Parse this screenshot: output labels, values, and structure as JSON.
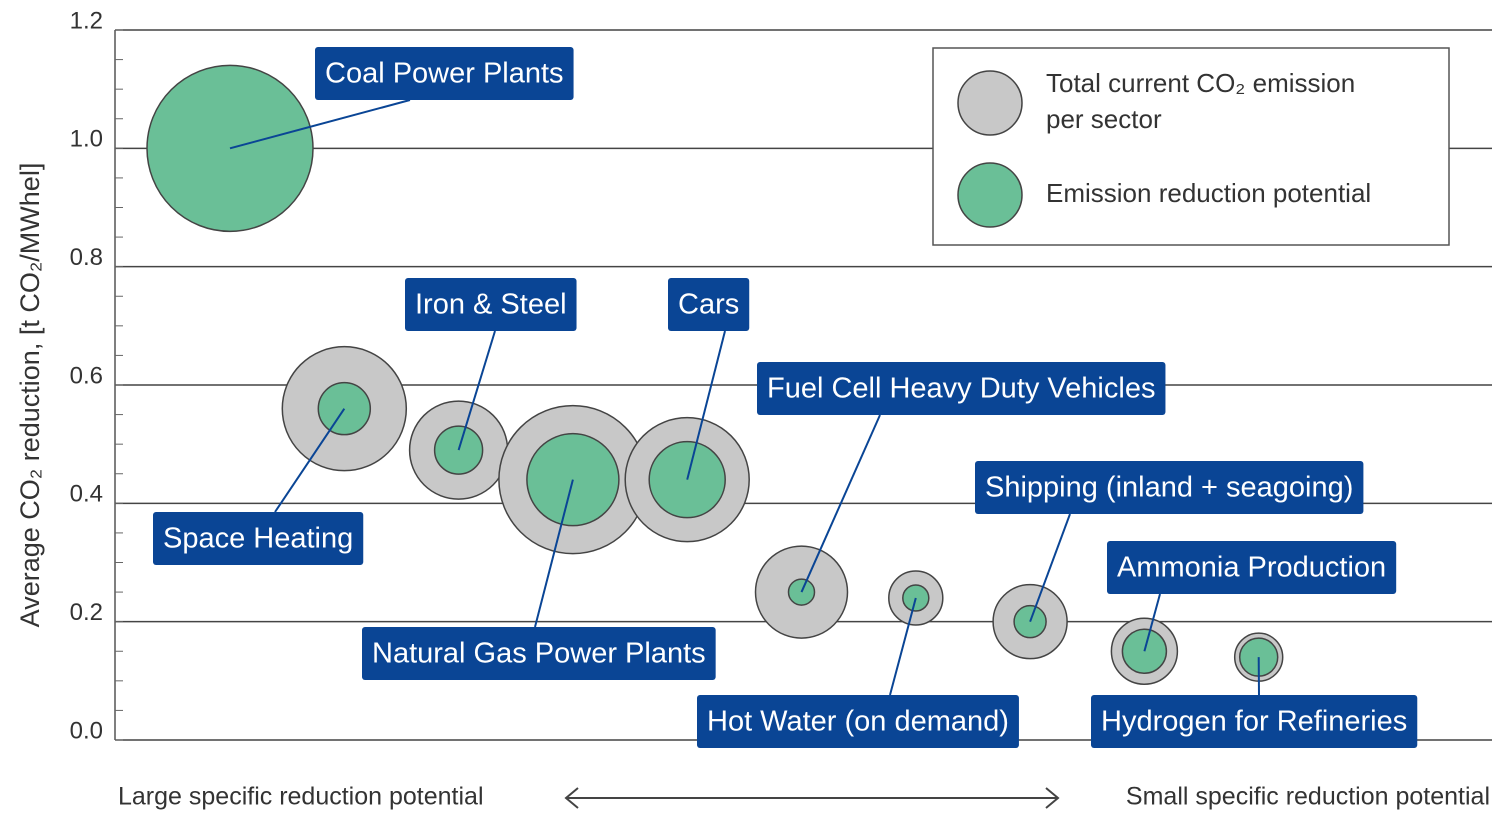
{
  "chart_data": {
    "type": "bubble",
    "y_label": "Average CO₂ reduction, [t CO₂/MWhel]",
    "x_label_left": "Large specific reduction potential",
    "x_label_right": "Small specific reduction potential",
    "categories": [
      "Coal Power Plants",
      "Space Heating",
      "Iron & Steel",
      "Natural Gas Power Plants",
      "Cars",
      "Fuel Cell Heavy Duty Vehicles",
      "Hot Water (on demand)",
      "Shipping (inland + seagoing)",
      "Ammonia Production",
      "Hydrogen for Refineries"
    ],
    "values": [
      1.0,
      0.56,
      0.49,
      0.44,
      0.44,
      0.25,
      0.24,
      0.2,
      0.15,
      0.14
    ],
    "series": [
      {
        "name": "Total current CO₂ emission per sector",
        "color": "#c8c8c8",
        "sizes": [
          null,
          62,
          49,
          74,
          62,
          46,
          27,
          37,
          33,
          24
        ]
      },
      {
        "name": "Emission reduction potential",
        "color": "#6abf97",
        "sizes": [
          83,
          26,
          24,
          46,
          38,
          13,
          13,
          16,
          22,
          19
        ]
      }
    ],
    "ylim": [
      0,
      1.2
    ],
    "yticks": [
      {
        "value": 0,
        "label": "0.0"
      },
      0.2,
      0.4,
      0.6,
      0.8,
      {
        "value": 1,
        "label": "1.0"
      },
      1.2
    ],
    "grid": true,
    "label_color": "#0a4595"
  }
}
